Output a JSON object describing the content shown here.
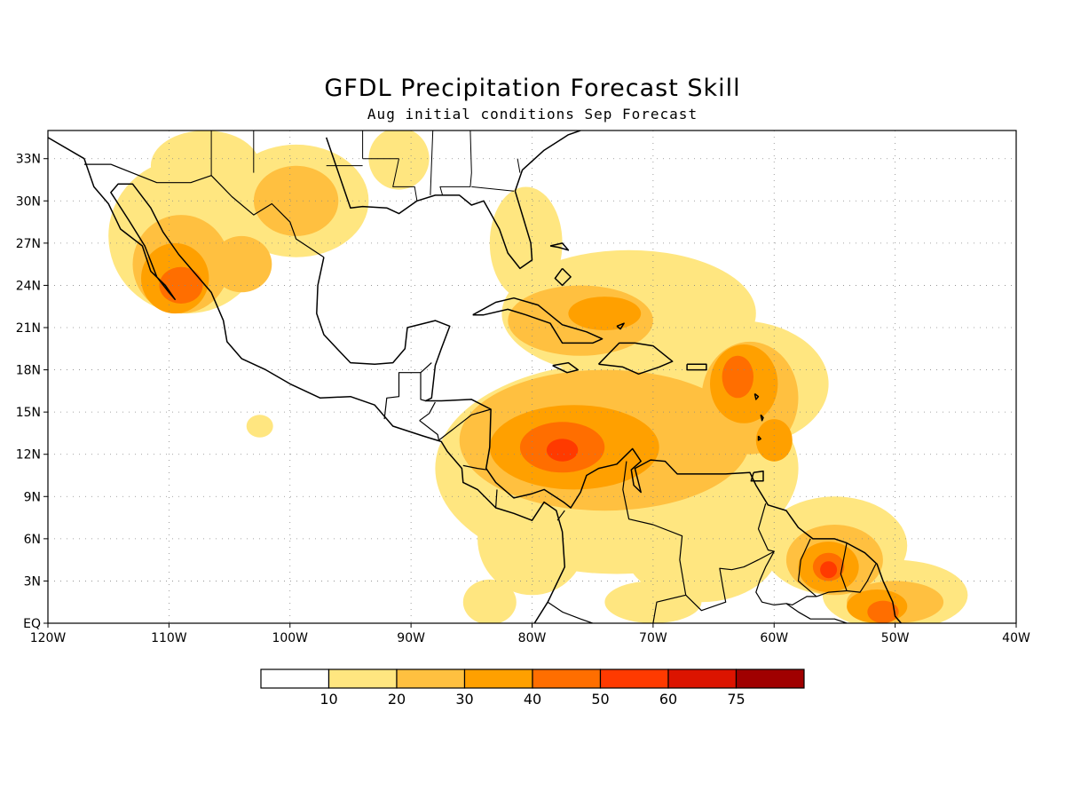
{
  "title": "GFDL Precipitation Forecast Skill",
  "subtitle": "Aug initial conditions  Sep Forecast",
  "map": {
    "lon_range": [
      -120,
      -40
    ],
    "lat_range": [
      0,
      35
    ],
    "x_ticks": [
      {
        "lon": -120,
        "label": "120W"
      },
      {
        "lon": -110,
        "label": "110W"
      },
      {
        "lon": -100,
        "label": "100W"
      },
      {
        "lon": -90,
        "label": "90W"
      },
      {
        "lon": -80,
        "label": "80W"
      },
      {
        "lon": -70,
        "label": "70W"
      },
      {
        "lon": -60,
        "label": "60W"
      },
      {
        "lon": -50,
        "label": "50W"
      },
      {
        "lon": -40,
        "label": "40W"
      }
    ],
    "y_ticks": [
      {
        "lat": 0,
        "label": "EQ"
      },
      {
        "lat": 3,
        "label": "3N"
      },
      {
        "lat": 6,
        "label": "6N"
      },
      {
        "lat": 9,
        "label": "9N"
      },
      {
        "lat": 12,
        "label": "12N"
      },
      {
        "lat": 15,
        "label": "15N"
      },
      {
        "lat": 18,
        "label": "18N"
      },
      {
        "lat": 21,
        "label": "21N"
      },
      {
        "lat": 24,
        "label": "24N"
      },
      {
        "lat": 27,
        "label": "27N"
      },
      {
        "lat": 30,
        "label": "30N"
      },
      {
        "lat": 33,
        "label": "33N"
      }
    ],
    "grid_lines": "dotted"
  },
  "colorbar": {
    "colors": [
      "#ffffff",
      "#ffe680",
      "#ffc040",
      "#ffa000",
      "#ff6e00",
      "#ff3a00",
      "#dc1400",
      "#a00000"
    ],
    "labels": [
      "10",
      "20",
      "30",
      "40",
      "50",
      "60",
      "75"
    ]
  },
  "skill_regions": [
    {
      "level": 1,
      "lon": -108.5,
      "lat": 27.5,
      "rlon": 6.5,
      "rlat": 5.5
    },
    {
      "level": 1,
      "lon": -99.5,
      "lat": 30.0,
      "rlon": 6.0,
      "rlat": 4.0
    },
    {
      "level": 1,
      "lon": -107.0,
      "lat": 32.5,
      "rlon": 4.5,
      "rlat": 2.5
    },
    {
      "level": 1,
      "lon": -91.0,
      "lat": 33.0,
      "rlon": 2.5,
      "rlat": 2.2
    },
    {
      "level": 1,
      "lon": -80.5,
      "lat": 27.0,
      "rlon": 3.0,
      "rlat": 4.0
    },
    {
      "level": 1,
      "lon": -72.0,
      "lat": 22.0,
      "rlon": 10.5,
      "rlat": 4.5
    },
    {
      "level": 1,
      "lon": -63.0,
      "lat": 17.0,
      "rlon": 7.5,
      "rlat": 4.5
    },
    {
      "level": 1,
      "lon": -73.0,
      "lat": 11.0,
      "rlon": 15.0,
      "rlat": 7.5
    },
    {
      "level": 1,
      "lon": -80.0,
      "lat": 6.0,
      "rlon": 4.5,
      "rlat": 4.0
    },
    {
      "level": 1,
      "lon": -66.0,
      "lat": 5.5,
      "rlon": 6.5,
      "rlat": 4.0
    },
    {
      "level": 1,
      "lon": -55.0,
      "lat": 5.5,
      "rlon": 6.0,
      "rlat": 3.5
    },
    {
      "level": 1,
      "lon": -50.0,
      "lat": 2.0,
      "rlon": 6.0,
      "rlat": 2.5
    },
    {
      "level": 1,
      "lon": -83.5,
      "lat": 1.5,
      "rlon": 2.2,
      "rlat": 1.6
    },
    {
      "level": 1,
      "lon": -102.5,
      "lat": 14.0,
      "rlon": 1.1,
      "rlat": 0.8
    },
    {
      "level": 1,
      "lon": -70.0,
      "lat": 1.5,
      "rlon": 4.0,
      "rlat": 1.5
    },
    {
      "level": 2,
      "lon": -109.0,
      "lat": 25.5,
      "rlon": 4.0,
      "rlat": 3.5
    },
    {
      "level": 2,
      "lon": -99.5,
      "lat": 30.0,
      "rlon": 3.5,
      "rlat": 2.5
    },
    {
      "level": 2,
      "lon": -104.0,
      "lat": 25.5,
      "rlon": 2.5,
      "rlat": 2.0
    },
    {
      "level": 2,
      "lon": -76.0,
      "lat": 21.5,
      "rlon": 6.0,
      "rlat": 2.5
    },
    {
      "level": 2,
      "lon": -74.0,
      "lat": 13.0,
      "rlon": 12.0,
      "rlat": 5.0
    },
    {
      "level": 2,
      "lon": -62.0,
      "lat": 16.0,
      "rlon": 4.0,
      "rlat": 4.0
    },
    {
      "level": 2,
      "lon": -55.0,
      "lat": 4.5,
      "rlon": 4.0,
      "rlat": 2.5
    },
    {
      "level": 2,
      "lon": -50.0,
      "lat": 1.5,
      "rlon": 4.0,
      "rlat": 1.5
    },
    {
      "level": 3,
      "lon": -109.5,
      "lat": 24.5,
      "rlon": 2.8,
      "rlat": 2.5
    },
    {
      "level": 3,
      "lon": -76.5,
      "lat": 12.5,
      "rlon": 7.0,
      "rlat": 3.0
    },
    {
      "level": 3,
      "lon": -62.5,
      "lat": 17.0,
      "rlon": 2.8,
      "rlat": 2.8
    },
    {
      "level": 3,
      "lon": -74.0,
      "lat": 22.0,
      "rlon": 3.0,
      "rlat": 1.2
    },
    {
      "level": 3,
      "lon": -55.5,
      "lat": 4.0,
      "rlon": 2.5,
      "rlat": 1.8
    },
    {
      "level": 3,
      "lon": -51.5,
      "lat": 1.2,
      "rlon": 2.5,
      "rlat": 1.2
    },
    {
      "level": 3,
      "lon": -60.0,
      "lat": 13.0,
      "rlon": 1.5,
      "rlat": 1.5
    },
    {
      "level": 4,
      "lon": -109.0,
      "lat": 24.0,
      "rlon": 1.8,
      "rlat": 1.3
    },
    {
      "level": 4,
      "lon": -77.5,
      "lat": 12.5,
      "rlon": 3.5,
      "rlat": 1.8
    },
    {
      "level": 4,
      "lon": -63.0,
      "lat": 17.5,
      "rlon": 1.3,
      "rlat": 1.5
    },
    {
      "level": 4,
      "lon": -55.5,
      "lat": 4.0,
      "rlon": 1.3,
      "rlat": 1.0
    },
    {
      "level": 4,
      "lon": -51.0,
      "lat": 0.8,
      "rlon": 1.3,
      "rlat": 0.8
    },
    {
      "level": 5,
      "lon": -77.5,
      "lat": 12.3,
      "rlon": 1.3,
      "rlat": 0.8
    },
    {
      "level": 5,
      "lon": -55.5,
      "lat": 3.8,
      "rlon": 0.7,
      "rlat": 0.6
    }
  ],
  "coastlines": [
    [
      [
        -120,
        34.5
      ],
      [
        -117,
        33
      ],
      [
        -116.2,
        31
      ],
      [
        -115,
        29.8
      ],
      [
        -114,
        28
      ],
      [
        -112.2,
        26.8
      ],
      [
        -111.5,
        25
      ],
      [
        -110.3,
        24
      ],
      [
        -109.5,
        23
      ],
      [
        -110,
        23.5
      ],
      [
        -111,
        24.6
      ],
      [
        -112,
        26.8
      ],
      [
        -113.3,
        28.6
      ],
      [
        -114.8,
        30.6
      ],
      [
        -114.2,
        31.2
      ],
      [
        -113,
        31.2
      ],
      [
        -111.5,
        29.5
      ],
      [
        -110.5,
        27.8
      ],
      [
        -109.2,
        26.2
      ],
      [
        -108,
        25
      ],
      [
        -106.5,
        23.5
      ],
      [
        -105.5,
        21.5
      ],
      [
        -105.2,
        20
      ],
      [
        -104,
        18.8
      ],
      [
        -102,
        18
      ],
      [
        -100,
        17
      ],
      [
        -97.5,
        16
      ],
      [
        -95,
        16.1
      ],
      [
        -93,
        15.5
      ],
      [
        -91.5,
        14
      ],
      [
        -89,
        13.3
      ],
      [
        -87.5,
        12.9
      ],
      [
        -87,
        12.2
      ],
      [
        -85.8,
        11
      ],
      [
        -85.7,
        10
      ],
      [
        -84.5,
        9.5
      ],
      [
        -83,
        8.2
      ],
      [
        -81.5,
        7.8
      ],
      [
        -80,
        7.3
      ],
      [
        -79,
        8.6
      ],
      [
        -78,
        8
      ],
      [
        -77.5,
        6.5
      ],
      [
        -77.3,
        4
      ],
      [
        -78.7,
        1.5
      ],
      [
        -79.8,
        0
      ]
    ],
    [
      [
        -97,
        34.5
      ],
      [
        -95,
        29.5
      ],
      [
        -94,
        29.6
      ],
      [
        -92,
        29.5
      ],
      [
        -91,
        29.1
      ],
      [
        -89.5,
        30
      ],
      [
        -88,
        30.4
      ],
      [
        -86,
        30.4
      ],
      [
        -85,
        29.7
      ],
      [
        -84,
        30
      ],
      [
        -82.7,
        28
      ],
      [
        -82,
        26.3
      ],
      [
        -81,
        25.2
      ],
      [
        -80,
        25.8
      ],
      [
        -80.1,
        27
      ],
      [
        -80.7,
        28.7
      ],
      [
        -81.4,
        30.7
      ],
      [
        -80.8,
        32.2
      ],
      [
        -79,
        33.6
      ],
      [
        -77,
        34.7
      ],
      [
        -76,
        35
      ]
    ],
    [
      [
        -97.2,
        26.0
      ],
      [
        -97.7,
        24.0
      ],
      [
        -97.8,
        22.0
      ],
      [
        -97.2,
        20.5
      ],
      [
        -96,
        19.4
      ],
      [
        -95,
        18.5
      ],
      [
        -93,
        18.4
      ],
      [
        -91.5,
        18.5
      ],
      [
        -90.5,
        19.5
      ],
      [
        -90.3,
        21
      ],
      [
        -88,
        21.5
      ],
      [
        -86.8,
        21.1
      ],
      [
        -87.5,
        19.5
      ],
      [
        -88,
        18.3
      ],
      [
        -88.3,
        16
      ],
      [
        -88.8,
        15.8
      ],
      [
        -87.5,
        15.8
      ],
      [
        -85,
        15.9
      ],
      [
        -83.4,
        15.2
      ],
      [
        -83.5,
        12.5
      ],
      [
        -83.8,
        11
      ],
      [
        -83,
        10
      ],
      [
        -81.5,
        8.9
      ],
      [
        -80,
        9.2
      ],
      [
        -79,
        9.5
      ],
      [
        -77.4,
        8.6
      ],
      [
        -76.8,
        8.2
      ],
      [
        -76,
        9.3
      ],
      [
        -75.5,
        10.5
      ],
      [
        -74.5,
        11
      ],
      [
        -73,
        11.3
      ],
      [
        -71.7,
        12.4
      ],
      [
        -71,
        11.5
      ],
      [
        -71.8,
        10.9
      ],
      [
        -71.6,
        9.8
      ],
      [
        -71,
        9.3
      ],
      [
        -71.5,
        11
      ],
      [
        -70.2,
        11.6
      ],
      [
        -69,
        11.5
      ],
      [
        -68,
        10.6
      ],
      [
        -66,
        10.6
      ],
      [
        -64,
        10.6
      ],
      [
        -62,
        10.7
      ],
      [
        -61.5,
        9.8
      ],
      [
        -60.5,
        8.4
      ],
      [
        -59,
        8
      ],
      [
        -58,
        6.8
      ],
      [
        -56.8,
        6
      ],
      [
        -55,
        6
      ],
      [
        -54,
        5.7
      ],
      [
        -52.5,
        5
      ],
      [
        -51.5,
        4.2
      ],
      [
        -51,
        3
      ],
      [
        -50.2,
        1.5
      ],
      [
        -50,
        0.5
      ],
      [
        -49.5,
        0
      ]
    ],
    [
      [
        -84.9,
        21.9
      ],
      [
        -83,
        22.8
      ],
      [
        -81.5,
        23.1
      ],
      [
        -79.5,
        22.6
      ],
      [
        -77.5,
        21.2
      ],
      [
        -75.5,
        20.7
      ],
      [
        -74.2,
        20.2
      ],
      [
        -75,
        19.9
      ],
      [
        -77.5,
        19.9
      ],
      [
        -78.5,
        21.3
      ],
      [
        -80.5,
        21.9
      ],
      [
        -82,
        22.3
      ],
      [
        -84,
        21.9
      ],
      [
        -84.9,
        21.9
      ]
    ],
    [
      [
        -74.5,
        18.4
      ],
      [
        -72.8,
        19.9
      ],
      [
        -71.5,
        19.9
      ],
      [
        -70,
        19.7
      ],
      [
        -68.4,
        18.6
      ],
      [
        -69.5,
        18.2
      ],
      [
        -71.2,
        17.7
      ],
      [
        -72.5,
        18.2
      ],
      [
        -74.5,
        18.4
      ]
    ],
    [
      [
        -78.3,
        18.3
      ],
      [
        -77,
        18.5
      ],
      [
        -76.2,
        18.0
      ],
      [
        -77.1,
        17.8
      ],
      [
        -78.3,
        18.3
      ]
    ],
    [
      [
        -67.2,
        18.4
      ],
      [
        -65.6,
        18.4
      ],
      [
        -65.6,
        18.0
      ],
      [
        -67.2,
        18.0
      ],
      [
        -67.2,
        18.4
      ]
    ],
    [
      [
        -61.7,
        10.7
      ],
      [
        -60.9,
        10.8
      ],
      [
        -60.9,
        10.1
      ],
      [
        -61.9,
        10.1
      ],
      [
        -61.7,
        10.7
      ]
    ],
    [
      [
        -73.0,
        21.1
      ],
      [
        -72.4,
        21.3
      ],
      [
        -72.7,
        20.9
      ],
      [
        -73.0,
        21.1
      ]
    ],
    [
      [
        -77.5,
        25.2
      ],
      [
        -76.8,
        24.6
      ],
      [
        -77.5,
        24.0
      ],
      [
        -78.1,
        24.5
      ],
      [
        -77.5,
        25.2
      ]
    ],
    [
      [
        -78.5,
        26.8
      ],
      [
        -77.8,
        26.7
      ],
      [
        -77.0,
        26.5
      ],
      [
        -77.5,
        27.0
      ],
      [
        -78.5,
        26.8
      ]
    ],
    [
      [
        -61.6,
        16.3
      ],
      [
        -61.3,
        16.1
      ],
      [
        -61.5,
        15.9
      ],
      [
        -61.6,
        16.3
      ]
    ],
    [
      [
        -61.1,
        14.8
      ],
      [
        -60.9,
        14.6
      ],
      [
        -61.0,
        14.4
      ],
      [
        -61.1,
        14.8
      ]
    ],
    [
      [
        -61.3,
        13.3
      ],
      [
        -61.1,
        13.1
      ],
      [
        -61.3,
        13.0
      ],
      [
        -61.3,
        13.3
      ]
    ]
  ],
  "borders": [
    [
      [
        -117,
        32.6
      ],
      [
        -114.8,
        32.6
      ],
      [
        -111,
        31.3
      ],
      [
        -108.2,
        31.3
      ],
      [
        -106.5,
        31.8
      ],
      [
        -104.8,
        30.3
      ],
      [
        -103,
        29
      ],
      [
        -101.5,
        29.8
      ],
      [
        -100,
        28.5
      ],
      [
        -99.5,
        27.3
      ],
      [
        -97.2,
        26.0
      ]
    ],
    [
      [
        -92.2,
        14.5
      ],
      [
        -92,
        16.0
      ],
      [
        -91,
        16.1
      ],
      [
        -91,
        17.8
      ],
      [
        -89.2,
        17.8
      ],
      [
        -89.2,
        15.9
      ],
      [
        -88.8,
        15.8
      ]
    ],
    [
      [
        -89.2,
        17.8
      ],
      [
        -88.3,
        18.5
      ]
    ],
    [
      [
        -89.3,
        14.4
      ],
      [
        -87.8,
        13.4
      ],
      [
        -87.7,
        13.0
      ]
    ],
    [
      [
        -89.3,
        14.4
      ],
      [
        -88.5,
        14.9
      ],
      [
        -88.0,
        15.7
      ]
    ],
    [
      [
        -87.7,
        13.0
      ],
      [
        -86.5,
        13.8
      ],
      [
        -85,
        14.8
      ],
      [
        -83.4,
        15.2
      ]
    ],
    [
      [
        -85.7,
        11.2
      ],
      [
        -84.5,
        11.0
      ],
      [
        -83.7,
        10.9
      ]
    ],
    [
      [
        -83,
        8.2
      ],
      [
        -82.9,
        9.5
      ]
    ],
    [
      [
        -77.3,
        8.0
      ],
      [
        -77.9,
        7.3
      ]
    ],
    [
      [
        -72.2,
        11.5
      ],
      [
        -72.5,
        9.5
      ],
      [
        -72.0,
        7.4
      ],
      [
        -70,
        7.0
      ],
      [
        -67.6,
        6.2
      ],
      [
        -67.8,
        4.5
      ],
      [
        -67.3,
        2.0
      ],
      [
        -69.7,
        1.5
      ],
      [
        -70,
        0
      ]
    ],
    [
      [
        -60.7,
        8.5
      ],
      [
        -61.3,
        6.7
      ],
      [
        -60.5,
        5.2
      ],
      [
        -60,
        5.1
      ],
      [
        -60.7,
        4.0
      ],
      [
        -61.2,
        3.0
      ],
      [
        -61.5,
        2.2
      ],
      [
        -61,
        1.5
      ],
      [
        -60,
        1.3
      ],
      [
        -59,
        1.4
      ],
      [
        -58.5,
        1.3
      ],
      [
        -57.3,
        1.9
      ],
      [
        -56.5,
        1.9
      ]
    ],
    [
      [
        -60,
        5.1
      ],
      [
        -61.3,
        4.5
      ],
      [
        -62.5,
        4.0
      ],
      [
        -63.5,
        3.8
      ],
      [
        -64.5,
        3.9
      ],
      [
        -64.2,
        2.4
      ],
      [
        -64.0,
        1.5
      ],
      [
        -66,
        0.9
      ],
      [
        -67.3,
        2.0
      ]
    ],
    [
      [
        -57.0,
        6.0
      ],
      [
        -57.8,
        4.5
      ],
      [
        -58.0,
        3.0
      ],
      [
        -56.5,
        1.9
      ]
    ],
    [
      [
        -54,
        5.7
      ],
      [
        -54.5,
        3.5
      ],
      [
        -54.0,
        2.3
      ],
      [
        -55.5,
        2.2
      ],
      [
        -56.5,
        1.9
      ]
    ],
    [
      [
        -51.6,
        4.2
      ],
      [
        -52.3,
        3.0
      ],
      [
        -52.9,
        2.2
      ],
      [
        -54.0,
        2.3
      ]
    ],
    [
      [
        -59.0,
        1.4
      ],
      [
        -58.0,
        0.8
      ],
      [
        -57.0,
        0.3
      ],
      [
        -55.0,
        0.3
      ],
      [
        -54.0,
        0
      ]
    ],
    [
      [
        -78.7,
        1.5
      ],
      [
        -77.5,
        0.8
      ],
      [
        -76,
        0.3
      ],
      [
        -75,
        0
      ]
    ]
  ],
  "state_lines": [
    [
      [
        -106.5,
        35
      ],
      [
        -106.5,
        31.8
      ]
    ],
    [
      [
        -103,
        35
      ],
      [
        -103,
        32
      ]
    ],
    [
      [
        -94,
        35
      ],
      [
        -94,
        33
      ]
    ],
    [
      [
        -94,
        33
      ],
      [
        -91,
        33
      ]
    ],
    [
      [
        -91,
        33
      ],
      [
        -91.5,
        31
      ],
      [
        -89.7,
        31
      ],
      [
        -89.5,
        30
      ]
    ],
    [
      [
        -88.2,
        35
      ],
      [
        -88.4,
        30.4
      ]
    ],
    [
      [
        -85.1,
        35
      ],
      [
        -85,
        32
      ],
      [
        -85.1,
        31
      ],
      [
        -87.6,
        31
      ],
      [
        -87.4,
        30.4
      ]
    ],
    [
      [
        -85,
        31
      ],
      [
        -81.5,
        30.7
      ]
    ],
    [
      [
        -81,
        32
      ],
      [
        -81.2,
        33
      ]
    ],
    [
      [
        -97,
        32.5
      ],
      [
        -94,
        32.5
      ]
    ]
  ]
}
